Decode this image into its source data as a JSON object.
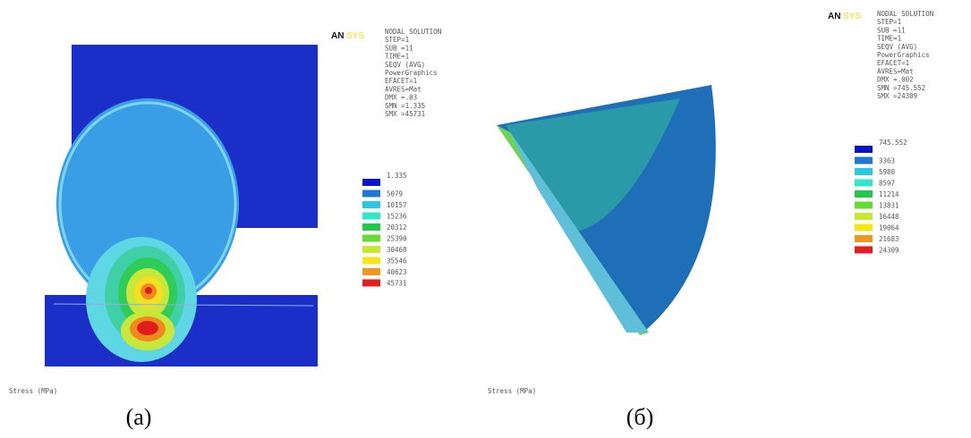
{
  "panels": [
    {
      "logo": [
        "AN",
        "SYS"
      ],
      "header": [
        "NODAL SOLUTION",
        "STEP=1",
        "SUB =11",
        "TIME=1",
        "SEQV (AVG)",
        "PowerGraphics",
        "EFACET=1",
        "AVRES=Mat",
        "DMX =.03",
        "SMN =1.335",
        "SMX =45731"
      ],
      "legend": [
        "1.335",
        "5079",
        "10157",
        "15236",
        "20312",
        "25390",
        "30468",
        "35546",
        "40623",
        "45731"
      ],
      "axis_label": "Stress (MPa)",
      "caption": "(а)"
    },
    {
      "logo": [
        "AN",
        "SYS"
      ],
      "header": [
        "NODAL SOLUTION",
        "STEP=1",
        "SUB =11",
        "TIME=1",
        "SEQV (AVG)",
        "PowerGraphics",
        "EFACET=1",
        "AVRES=Mat",
        "DMX =.002",
        "SMN =745.552",
        "SMX =24309"
      ],
      "legend": [
        "745.552",
        "3363",
        "5980",
        "8597",
        "11214",
        "13831",
        "16448",
        "19064",
        "21683",
        "24309"
      ],
      "axis_label": "Stress (MPa)",
      "caption": "(б)"
    }
  ]
}
